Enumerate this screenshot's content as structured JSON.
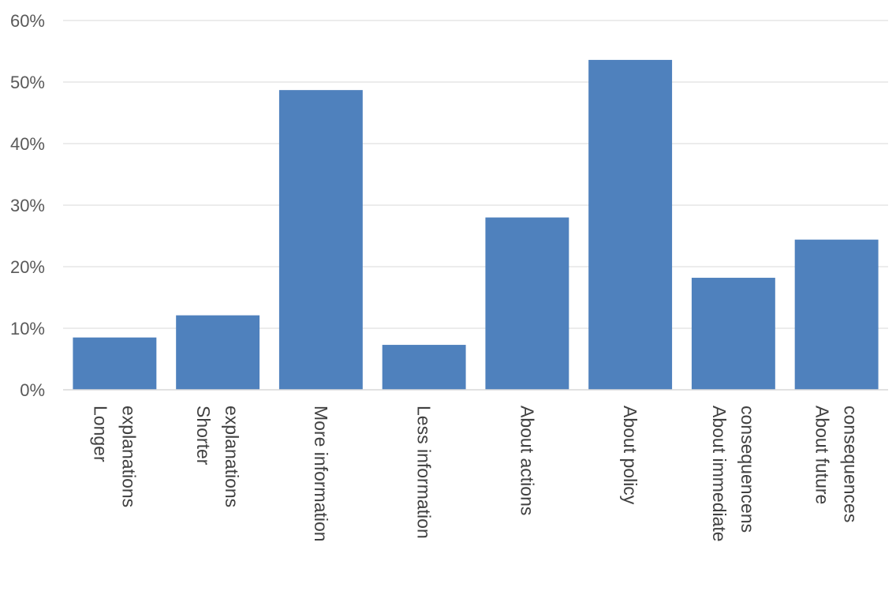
{
  "chart_data": {
    "type": "bar",
    "title": "",
    "xlabel": "",
    "ylabel": "",
    "ylim": [
      0,
      60
    ],
    "yticks": [
      "0%",
      "10%",
      "20%",
      "30%",
      "40%",
      "50%",
      "60%"
    ],
    "grid": true,
    "legend": "none",
    "bar_color": "#4f81bd",
    "categories": [
      [
        "Longer",
        "explanations"
      ],
      [
        "Shorter",
        "explanations"
      ],
      [
        "More information"
      ],
      [
        "Less information"
      ],
      [
        "About actions"
      ],
      [
        "About policy"
      ],
      [
        "About immediate",
        "consequencens"
      ],
      [
        "About future",
        "consequences"
      ]
    ],
    "values": [
      8.5,
      12.1,
      48.7,
      7.3,
      28.0,
      53.6,
      18.2,
      24.4
    ]
  }
}
